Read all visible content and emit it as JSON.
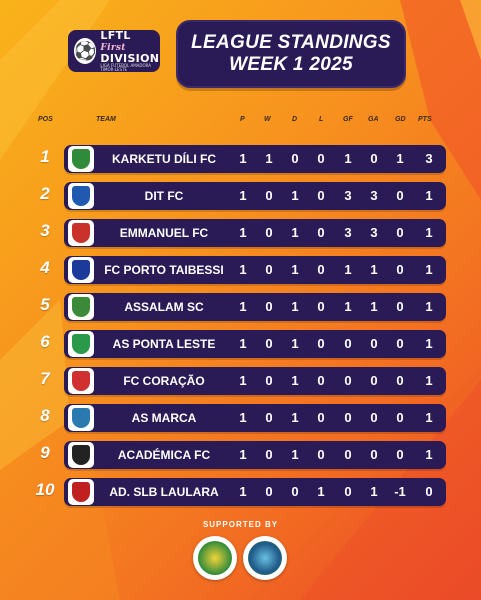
{
  "logo": {
    "line1": "LFTL",
    "line1b": "First",
    "line2": "DIVISION",
    "tiny": "LIGA FUTEBOL AMADORA TIMOR-LESTE"
  },
  "title": {
    "line1": "LEAGUE STANDINGS",
    "line2": "WEEK 1 2025"
  },
  "columns": {
    "pos": "POS",
    "team": "TEAM",
    "p": "P",
    "w": "W",
    "d": "D",
    "l": "L",
    "gf": "GF",
    "ga": "GA",
    "gd": "GD",
    "pts": "PTS"
  },
  "rows": [
    {
      "pos": "1",
      "team": "KARKETU DÍLI FC",
      "p": "1",
      "w": "1",
      "d": "0",
      "l": "0",
      "gf": "1",
      "ga": "0",
      "gd": "1",
      "pts": "3",
      "crest": "#2f8a3a"
    },
    {
      "pos": "2",
      "team": "DIT FC",
      "p": "1",
      "w": "0",
      "d": "1",
      "l": "0",
      "gf": "3",
      "ga": "3",
      "gd": "0",
      "pts": "1",
      "crest": "#1f5ab0"
    },
    {
      "pos": "3",
      "team": "EMMANUEL FC",
      "p": "1",
      "w": "0",
      "d": "1",
      "l": "0",
      "gf": "3",
      "ga": "3",
      "gd": "0",
      "pts": "1",
      "crest": "#c8322a"
    },
    {
      "pos": "4",
      "team": "FC PORTO TAIBESSI",
      "p": "1",
      "w": "0",
      "d": "1",
      "l": "0",
      "gf": "1",
      "ga": "1",
      "gd": "0",
      "pts": "1",
      "crest": "#1c3a9a"
    },
    {
      "pos": "5",
      "team": "ASSALAM SC",
      "p": "1",
      "w": "0",
      "d": "1",
      "l": "0",
      "gf": "1",
      "ga": "1",
      "gd": "0",
      "pts": "1",
      "crest": "#3a8a3a"
    },
    {
      "pos": "6",
      "team": "AS PONTA LESTE",
      "p": "1",
      "w": "0",
      "d": "1",
      "l": "0",
      "gf": "0",
      "ga": "0",
      "gd": "0",
      "pts": "1",
      "crest": "#2a9a4a"
    },
    {
      "pos": "7",
      "team": "FC CORAÇÃO",
      "p": "1",
      "w": "0",
      "d": "1",
      "l": "0",
      "gf": "0",
      "ga": "0",
      "gd": "0",
      "pts": "1",
      "crest": "#d03030"
    },
    {
      "pos": "8",
      "team": "AS MARCA",
      "p": "1",
      "w": "0",
      "d": "1",
      "l": "0",
      "gf": "0",
      "ga": "0",
      "gd": "0",
      "pts": "1",
      "crest": "#2a7ab0"
    },
    {
      "pos": "9",
      "team": "ACADÉMICA FC",
      "p": "1",
      "w": "0",
      "d": "1",
      "l": "0",
      "gf": "0",
      "ga": "0",
      "gd": "0",
      "pts": "1",
      "crest": "#222222"
    },
    {
      "pos": "10",
      "team": "AD. SLB LAULARA",
      "p": "1",
      "w": "0",
      "d": "0",
      "l": "1",
      "gf": "0",
      "ga": "1",
      "gd": "-1",
      "pts": "0",
      "crest": "#c02020"
    }
  ],
  "footer": {
    "supported_by": "SUPPORTED BY"
  },
  "colors": {
    "bar": "#2a1a55",
    "bg_light": "#f9b31a",
    "bg_dark": "#e8452a"
  }
}
